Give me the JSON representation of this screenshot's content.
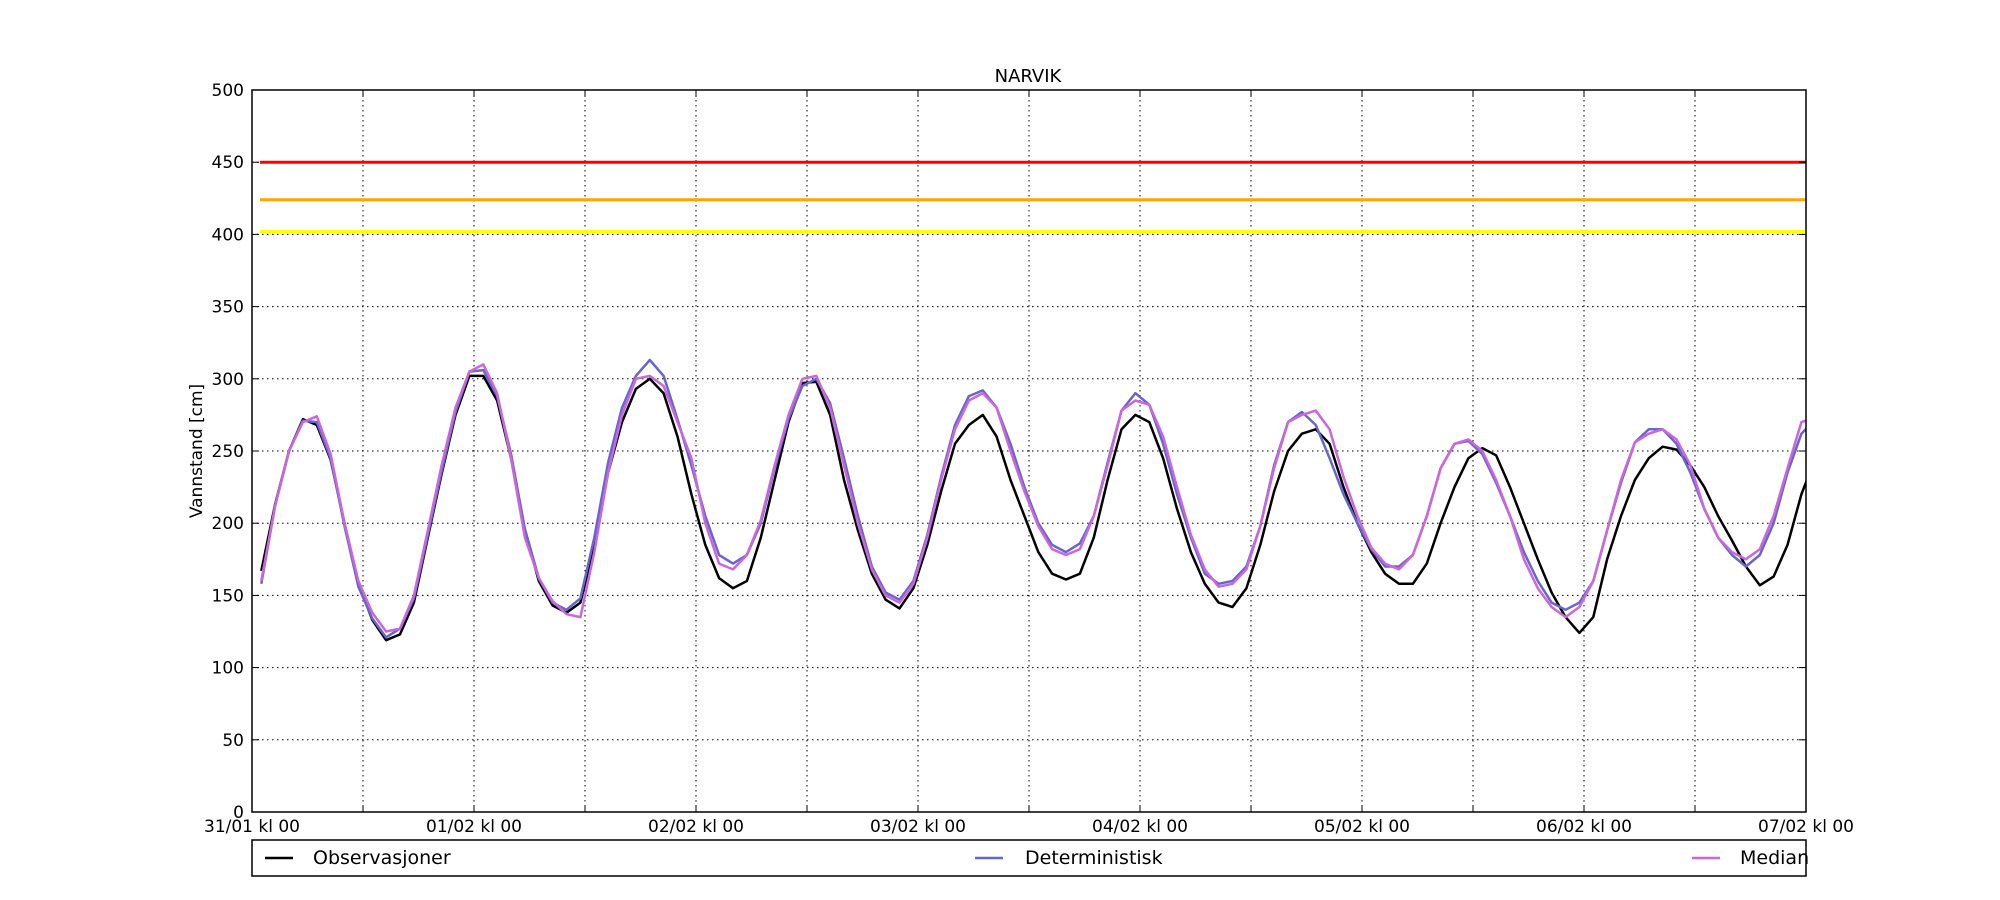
{
  "chart_data": {
    "type": "line",
    "title": "NARVIK",
    "ylabel": "Vannstand [cm]",
    "xlabel": "",
    "ylim": [
      0,
      500
    ],
    "xlim": [
      0,
      168
    ],
    "yticks": [
      0,
      50,
      100,
      150,
      200,
      250,
      300,
      350,
      400,
      450,
      500
    ],
    "xticks_major": [
      {
        "x": 0,
        "label": "31/01 kl 00"
      },
      {
        "x": 24,
        "label": "01/02 kl 00"
      },
      {
        "x": 48,
        "label": "02/02 kl 00"
      },
      {
        "x": 72,
        "label": "03/02 kl 00"
      },
      {
        "x": 96,
        "label": "04/02 kl 00"
      },
      {
        "x": 120,
        "label": "05/02 kl 00"
      },
      {
        "x": 144,
        "label": "06/02 kl 00"
      },
      {
        "x": 168,
        "label": "07/02 kl 00"
      }
    ],
    "xticks_minor": [
      12,
      36,
      60,
      84,
      108,
      132,
      156
    ],
    "grid": true,
    "legend_placement": "bottom",
    "threshold_lines": [
      {
        "y": 450,
        "color": "#ff0000"
      },
      {
        "y": 424,
        "color": "#ffa500"
      },
      {
        "y": 402,
        "color": "#ffff00"
      }
    ],
    "series": [
      {
        "name": "Observasjoner",
        "color": "#000000",
        "x0": 1,
        "dx": 1.5,
        "values": [
          167,
          213,
          250,
          272,
          268,
          244,
          200,
          158,
          133,
          119,
          123,
          145,
          190,
          234,
          275,
          302,
          302,
          285,
          245,
          195,
          160,
          143,
          138,
          145,
          185,
          235,
          270,
          293,
          300,
          290,
          260,
          220,
          185,
          162,
          155,
          160,
          190,
          230,
          270,
          297,
          298,
          275,
          230,
          195,
          165,
          147,
          141,
          155,
          185,
          222,
          255,
          268,
          275,
          260,
          230,
          205,
          180,
          165,
          161,
          165,
          190,
          230,
          265,
          275,
          270,
          245,
          210,
          180,
          158,
          145,
          142,
          155,
          185,
          222,
          250,
          262,
          265,
          255,
          225,
          200,
          180,
          165,
          158,
          158,
          172,
          200,
          225,
          245,
          252,
          247,
          225,
          200,
          175,
          152,
          135,
          124,
          135,
          175,
          205,
          230,
          245,
          253,
          251,
          240,
          225,
          205,
          188,
          170,
          157,
          163,
          185,
          220,
          245,
          257,
          251,
          232,
          212,
          180,
          165,
          155,
          142,
          140,
          160,
          200,
          235,
          265,
          285,
          275,
          245,
          220,
          195,
          165,
          142,
          136,
          143,
          175,
          210,
          245,
          262,
          260,
          242,
          205,
          170,
          140,
          118,
          104,
          108,
          140,
          175,
          215,
          252,
          267,
          264,
          240,
          200,
          165,
          131,
          110,
          96,
          110,
          155,
          200,
          235,
          260,
          265,
          250
        ]
      },
      {
        "name": "Deterministisk",
        "color": "#6666cc",
        "x0": 1,
        "dx": 1.5,
        "values": [
          158,
          212,
          250,
          271,
          270,
          245,
          198,
          156,
          134,
          121,
          127,
          148,
          192,
          236,
          277,
          305,
          306,
          288,
          248,
          196,
          162,
          145,
          140,
          148,
          190,
          242,
          280,
          302,
          313,
          302,
          272,
          240,
          205,
          178,
          172,
          178,
          200,
          238,
          272,
          295,
          300,
          283,
          245,
          205,
          170,
          152,
          147,
          160,
          192,
          232,
          268,
          288,
          292,
          280,
          255,
          225,
          200,
          185,
          180,
          186,
          205,
          242,
          278,
          290,
          282,
          255,
          220,
          190,
          165,
          158,
          160,
          170,
          198,
          240,
          270,
          277,
          268,
          245,
          220,
          200,
          182,
          170,
          170,
          178,
          205,
          238,
          255,
          257,
          248,
          228,
          205,
          180,
          160,
          145,
          140,
          145,
          160,
          195,
          228,
          256,
          265,
          265,
          255,
          235,
          210,
          190,
          178,
          170,
          178,
          200,
          235,
          262,
          272,
          265,
          245,
          215,
          190,
          168,
          148,
          140,
          150,
          180,
          218,
          255,
          285,
          288,
          270,
          235,
          200,
          170,
          160,
          150,
          152,
          180,
          218,
          250,
          265,
          270,
          245,
          210,
          165,
          135,
          112,
          106,
          118,
          140,
          175,
          220,
          255,
          265,
          258,
          235,
          205,
          160,
          128,
          108,
          95,
          108,
          150,
          200,
          240,
          260,
          265,
          240
        ]
      },
      {
        "name": "Median",
        "color": "#cc66dd",
        "x0": 1,
        "dx": 1.5,
        "values": [
          160,
          212,
          250,
          270,
          274,
          248,
          200,
          160,
          138,
          125,
          127,
          150,
          195,
          240,
          280,
          305,
          310,
          290,
          245,
          190,
          162,
          146,
          137,
          135,
          180,
          235,
          275,
          300,
          302,
          295,
          270,
          245,
          200,
          172,
          168,
          178,
          202,
          240,
          275,
          300,
          302,
          280,
          240,
          200,
          168,
          150,
          145,
          158,
          190,
          230,
          265,
          285,
          290,
          280,
          250,
          222,
          198,
          182,
          178,
          182,
          205,
          240,
          278,
          285,
          282,
          260,
          225,
          192,
          168,
          156,
          158,
          168,
          198,
          238,
          270,
          275,
          278,
          265,
          232,
          205,
          183,
          172,
          168,
          178,
          205,
          238,
          255,
          258,
          250,
          230,
          205,
          175,
          155,
          142,
          135,
          142,
          160,
          195,
          230,
          256,
          262,
          265,
          258,
          240,
          210,
          190,
          180,
          175,
          182,
          205,
          238,
          270,
          273,
          268,
          245,
          210,
          185,
          162,
          155,
          152,
          160,
          188,
          225,
          260,
          285,
          280,
          270,
          235,
          200,
          170,
          160,
          148,
          150,
          178,
          215,
          250,
          265,
          265,
          245,
          210,
          168,
          135,
          115,
          108,
          118,
          140,
          170,
          215,
          255,
          268,
          260,
          238,
          200,
          160,
          125,
          105,
          93,
          105,
          150,
          200,
          240,
          262,
          268,
          245
        ]
      }
    ]
  }
}
